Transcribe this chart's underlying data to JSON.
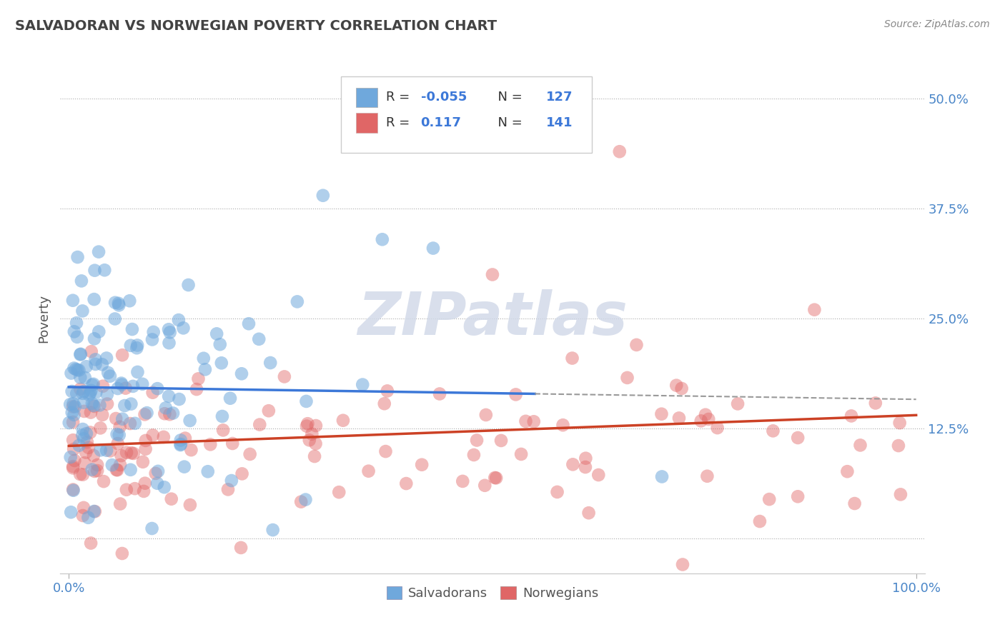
{
  "title": "SALVADORAN VS NORWEGIAN POVERTY CORRELATION CHART",
  "source": "Source: ZipAtlas.com",
  "ylabel": "Poverty",
  "xlabel": "",
  "xlim": [
    -1,
    101
  ],
  "ylim": [
    -4,
    54
  ],
  "ytick_vals": [
    0,
    12.5,
    25.0,
    37.5,
    50.0
  ],
  "ytick_labels": [
    "",
    "12.5%",
    "25.0%",
    "37.5%",
    "50.0%"
  ],
  "xtick_vals": [
    0,
    100
  ],
  "xtick_labels": [
    "0.0%",
    "100.0%"
  ],
  "blue_color": "#6fa8dc",
  "pink_color": "#e06666",
  "blue_line_color": "#3c78d8",
  "pink_line_color": "#cc4125",
  "gray_dash_color": "#999999",
  "legend_R1": "-0.055",
  "legend_N1": "127",
  "legend_R2": "0.117",
  "legend_N2": "141",
  "title_color": "#434343",
  "label_color": "#4a86c8",
  "grid_color": "#aaaaaa",
  "watermark_text": "ZIPatlas",
  "watermark_color": "#d0d8e8",
  "blue_line_start_y": 17.2,
  "blue_line_end_y": 15.8,
  "pink_line_start_y": 10.5,
  "pink_line_end_y": 14.0,
  "blue_dash_end_x": 100,
  "blue_solid_end_x": 50
}
